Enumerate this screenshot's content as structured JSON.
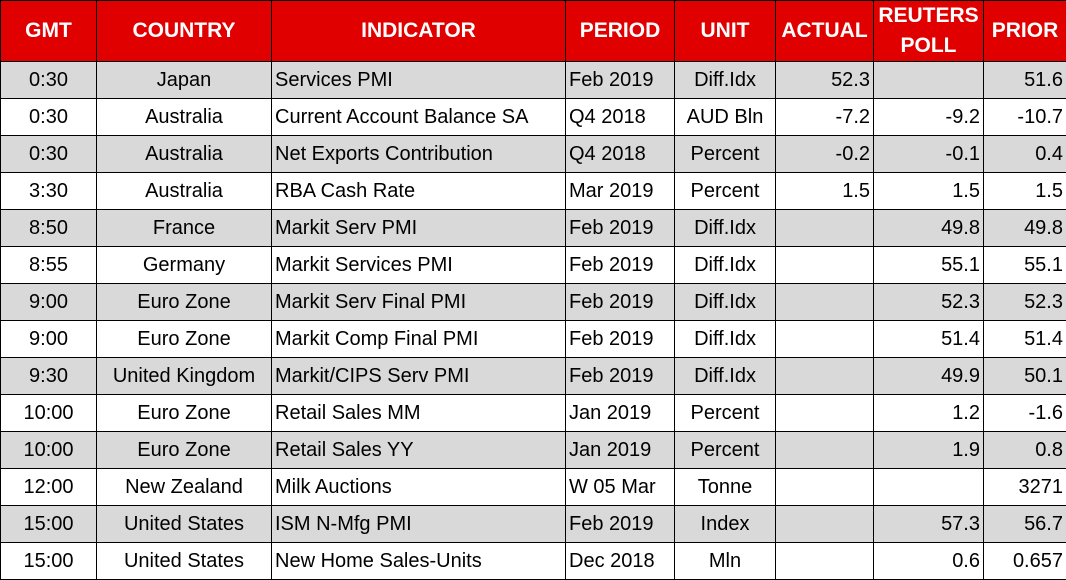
{
  "table": {
    "headers": [
      "GMT",
      "COUNTRY",
      "INDICATOR",
      "PERIOD",
      "UNIT",
      "ACTUAL",
      "REUTERS POLL",
      "PRIOR"
    ],
    "rows": [
      [
        "0:30",
        "Japan",
        "Services PMI",
        "Feb 2019",
        "Diff.Idx",
        "52.3",
        null,
        "51.6"
      ],
      [
        "0:30",
        "Australia",
        "Current Account Balance SA",
        "Q4 2018",
        "AUD Bln",
        "-7.2",
        "-9.2",
        "-10.7"
      ],
      [
        "0:30",
        "Australia",
        "Net Exports Contribution",
        "Q4 2018",
        "Percent",
        "-0.2",
        "-0.1",
        "0.4"
      ],
      [
        "3:30",
        "Australia",
        "RBA Cash Rate",
        "Mar 2019",
        "Percent",
        "1.5",
        "1.5",
        "1.5"
      ],
      [
        "8:50",
        "France",
        "Markit Serv PMI",
        "Feb 2019",
        "Diff.Idx",
        null,
        "49.8",
        "49.8"
      ],
      [
        "8:55",
        "Germany",
        "Markit Services PMI",
        "Feb 2019",
        "Diff.Idx",
        null,
        "55.1",
        "55.1"
      ],
      [
        "9:00",
        "Euro Zone",
        "Markit Serv Final PMI",
        "Feb 2019",
        "Diff.Idx",
        null,
        "52.3",
        "52.3"
      ],
      [
        "9:00",
        "Euro Zone",
        "Markit Comp Final PMI",
        "Feb 2019",
        "Diff.Idx",
        null,
        "51.4",
        "51.4"
      ],
      [
        "9:30",
        "United Kingdom",
        "Markit/CIPS Serv PMI",
        "Feb 2019",
        "Diff.Idx",
        null,
        "49.9",
        "50.1"
      ],
      [
        "10:00",
        "Euro Zone",
        "Retail Sales MM",
        "Jan 2019",
        "Percent",
        null,
        "1.2",
        "-1.6"
      ],
      [
        "10:00",
        "Euro Zone",
        "Retail Sales YY",
        "Jan 2019",
        "Percent",
        null,
        "1.9",
        "0.8"
      ],
      [
        "12:00",
        "New Zealand",
        "Milk Auctions",
        "W 05 Mar",
        "Tonne",
        null,
        null,
        "3271"
      ],
      [
        "15:00",
        "United States",
        "ISM N-Mfg PMI",
        "Feb 2019",
        "Index",
        null,
        "57.3",
        "56.7"
      ],
      [
        "15:00",
        "United States",
        "New Home Sales-Units",
        "Dec 2018",
        "Mln",
        null,
        "0.6",
        "0.657"
      ]
    ]
  }
}
